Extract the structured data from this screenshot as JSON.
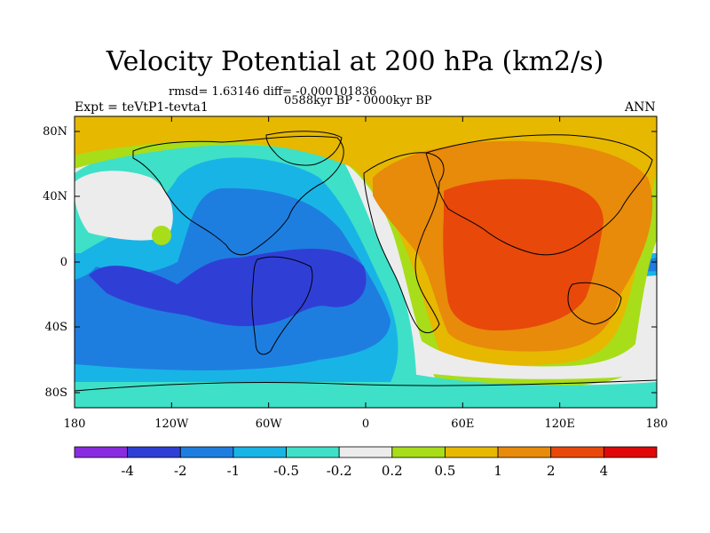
{
  "title": "Velocity Potential at 200 hPa (km2/s)",
  "stats": "rmsd= 1.63146 diff= -0.000101836",
  "period": "0588kyr BP - 0000kyr BP",
  "experiment": "Expt = teVtP1-tevta1",
  "season": "ANN",
  "axes": {
    "y_ticks": [
      "80N",
      "40N",
      "0",
      "40S",
      "80S"
    ],
    "x_ticks": [
      "180",
      "120W",
      "60W",
      "0",
      "60E",
      "120E",
      "180"
    ]
  },
  "colorbar": {
    "labels": [
      "-4",
      "-2",
      "-1",
      "-0.5",
      "-0.2",
      "0.2",
      "0.5",
      "1",
      "2",
      "4"
    ],
    "colors": [
      "#8a2be2",
      "#2f3fd6",
      "#1e7ee0",
      "#19b4e6",
      "#3ee0c8",
      "#ececec",
      "#a8dd1a",
      "#e6b800",
      "#e88a0a",
      "#e8480a",
      "#e00808"
    ]
  },
  "colors": {
    "land_outline": "#000000",
    "frame": "#000000"
  }
}
